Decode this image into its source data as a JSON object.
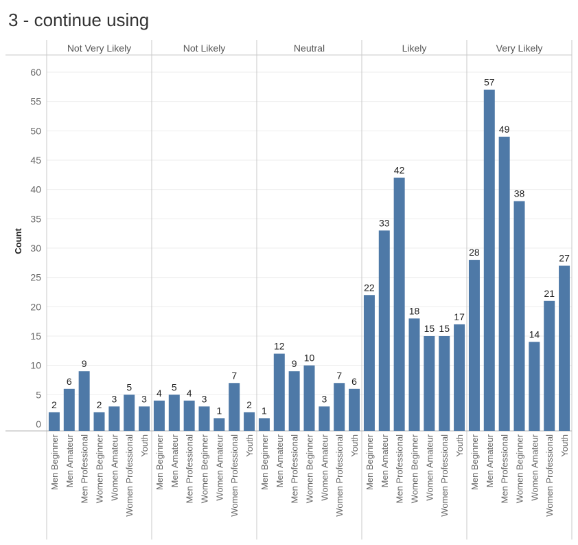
{
  "title": "3 - continue using",
  "colors": {
    "bar": "#4e79a7",
    "grid": "#ededed",
    "divider": "#c8c8c8",
    "axis": "#b0b0b0"
  },
  "chart_data": {
    "type": "bar",
    "title": "3 - continue using",
    "ylabel": "Count",
    "xlabel": "",
    "ylim": [
      0,
      60
    ],
    "yticks": [
      0,
      5,
      10,
      15,
      20,
      25,
      30,
      35,
      40,
      45,
      50,
      55,
      60
    ],
    "grid": true,
    "categories": [
      "Men Beginner",
      "Men Amateur",
      "Men Professional",
      "Women Beginner",
      "Women Amateur",
      "Women Professional",
      "Youth"
    ],
    "panels": [
      {
        "label": "Not Very Likely",
        "values": [
          2,
          6,
          9,
          2,
          3,
          5,
          3
        ]
      },
      {
        "label": "Not Likely",
        "values": [
          4,
          5,
          4,
          3,
          1,
          7,
          2
        ]
      },
      {
        "label": "Neutral",
        "values": [
          1,
          12,
          9,
          10,
          3,
          7,
          6
        ]
      },
      {
        "label": "Likely",
        "values": [
          22,
          33,
          42,
          18,
          15,
          15,
          17
        ]
      },
      {
        "label": "Very Likely",
        "values": [
          28,
          57,
          49,
          38,
          14,
          21,
          27
        ]
      }
    ]
  }
}
